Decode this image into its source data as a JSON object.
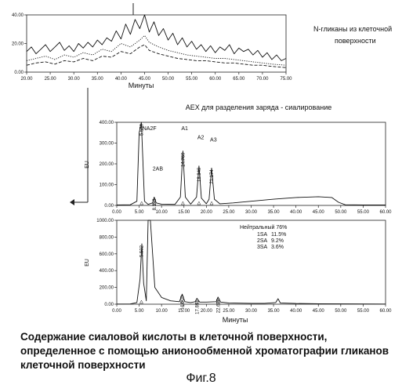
{
  "figure": {
    "caption_lines": [
      "Содержание сиаловой кислоты в клеточной поверхности,",
      "определенное с помощью анионообменной хроматографии гликанов",
      "клеточной поверхности"
    ],
    "label": "Фиг.8"
  },
  "chart_data": [
    {
      "id": "top",
      "type": "line",
      "title": "N-гликаны из клеточной поверхности",
      "xlabel": "Минуты",
      "ylabel": "",
      "xlim": [
        20,
        75
      ],
      "ylim": [
        0,
        50
      ],
      "x_ticks": [
        "20.00",
        "25.00",
        "30.00",
        "35.00",
        "40.00",
        "45.00",
        "50.00",
        "55.00",
        "60.00",
        "65.00",
        "70.00",
        "75.00"
      ],
      "y_ticks": [
        "0.00",
        "20.00",
        "40.00"
      ],
      "series": [
        {
          "style": "solid",
          "x": [
            20,
            21,
            22,
            23,
            24,
            25,
            26,
            27,
            28,
            29,
            30,
            31,
            32,
            33,
            34,
            35,
            36,
            37,
            38,
            39,
            40,
            41,
            42,
            43,
            44,
            45,
            46,
            47,
            48,
            49,
            50,
            51,
            52,
            53,
            54,
            55,
            56,
            57,
            58,
            59,
            60,
            61,
            62,
            63,
            64,
            65,
            66,
            67,
            68,
            69,
            70,
            71,
            72,
            73,
            74,
            75
          ],
          "y": [
            18,
            22,
            16,
            20,
            24,
            18,
            22,
            26,
            19,
            23,
            18,
            25,
            21,
            26,
            22,
            28,
            24,
            30,
            27,
            36,
            29,
            42,
            33,
            46,
            38,
            51,
            35,
            44,
            32,
            38,
            28,
            34,
            24,
            30,
            22,
            27,
            20,
            24,
            18,
            23,
            17,
            22,
            19,
            24,
            16,
            21,
            18,
            20,
            15,
            19,
            13,
            17,
            11,
            15,
            10,
            12
          ]
        },
        {
          "style": "dotted",
          "x": [
            20,
            22,
            24,
            26,
            28,
            30,
            32,
            34,
            36,
            38,
            40,
            42,
            44,
            45,
            46,
            48,
            50,
            52,
            54,
            56,
            58,
            60,
            62,
            64,
            66,
            68,
            70,
            72,
            75
          ],
          "y": [
            10,
            12,
            14,
            11,
            15,
            13,
            17,
            15,
            20,
            18,
            25,
            22,
            28,
            32,
            26,
            22,
            19,
            17,
            15,
            14,
            13,
            12,
            12,
            11,
            10,
            9,
            8,
            7,
            6
          ]
        },
        {
          "style": "dashed",
          "x": [
            20,
            22,
            24,
            26,
            28,
            30,
            32,
            34,
            36,
            38,
            40,
            42,
            44,
            45,
            46,
            48,
            50,
            52,
            54,
            56,
            58,
            60,
            62,
            64,
            66,
            68,
            70,
            72,
            75
          ],
          "y": [
            6,
            8,
            9,
            7,
            10,
            9,
            12,
            10,
            14,
            13,
            18,
            16,
            22,
            24,
            19,
            16,
            14,
            12,
            11,
            10,
            10,
            9,
            8,
            8,
            7,
            6,
            6,
            5,
            4
          ]
        }
      ]
    },
    {
      "id": "aex",
      "type": "line",
      "title": "AEX для разделения заряда - сиалирование",
      "xlabel": "",
      "ylabel": "EU",
      "xlim": [
        0,
        60
      ],
      "ylim": [
        0,
        400
      ],
      "x_ticks": [
        "0.00",
        "5.00",
        "10.00",
        "15.00",
        "20.00",
        "25.00",
        "30.00",
        "35.00",
        "40.00",
        "45.00",
        "50.00",
        "55.00",
        "60.00"
      ],
      "y_ticks": [
        "0.00",
        "100.00",
        "200.00",
        "300.00",
        "400.00"
      ],
      "series": [
        {
          "style": "solid",
          "x": [
            0,
            3,
            4.5,
            5.0,
            5.5,
            6.2,
            7,
            8.0,
            8.358,
            8.8,
            10,
            13,
            14.2,
            14.76,
            15.3,
            16.5,
            17.8,
            18.349,
            18.9,
            20,
            20.6,
            21.174,
            21.8,
            23,
            26,
            30,
            35,
            40,
            45,
            48,
            49.5,
            51,
            55,
            60
          ],
          "y": [
            2,
            3,
            20,
            350,
            410,
            20,
            5,
            12,
            40,
            12,
            6,
            5,
            40,
            262,
            40,
            6,
            40,
            190,
            35,
            8,
            30,
            180,
            30,
            8,
            12,
            20,
            30,
            38,
            42,
            38,
            15,
            3,
            2,
            2
          ]
        }
      ],
      "peak_labels": [
        {
          "name": "NA2F",
          "time": "5.550",
          "x": 5.55
        },
        {
          "name": "2AB",
          "time": "8.358",
          "x": 8.358
        },
        {
          "name": "A1",
          "time": "14.760",
          "x": 14.76
        },
        {
          "name": "A2",
          "time": "18.349",
          "x": 18.349
        },
        {
          "name": "A3",
          "time": "21.174",
          "x": 21.174
        }
      ]
    },
    {
      "id": "cells",
      "type": "line",
      "title": "",
      "xlabel": "Минуты",
      "ylabel": "EU",
      "xlim": [
        0,
        60
      ],
      "ylim": [
        0,
        1000
      ],
      "x_ticks": [
        "0.00",
        "5.00",
        "10.00",
        "15.00",
        "20.00",
        "25.00",
        "30.00",
        "35.00",
        "40.00",
        "45.00",
        "50.00",
        "55.00",
        "60.00"
      ],
      "y_ticks": [
        "0.00",
        "200.00",
        "400.00",
        "600.00",
        "800.00",
        "1000.00"
      ],
      "series": [
        {
          "style": "solid",
          "x": [
            0,
            3,
            4.5,
            5.2,
            5.6,
            6.0,
            6.6,
            7.0,
            7.5,
            8.5,
            10,
            12,
            14,
            14.6,
            15.2,
            16.5,
            17.5,
            17.9,
            18.5,
            20,
            22.2,
            22.6,
            23.2,
            25,
            30,
            33,
            35.5,
            36,
            36.5,
            40,
            45,
            50,
            55,
            60
          ],
          "y": [
            2,
            3,
            20,
            300,
            720,
            250,
            40,
            1000,
            1000,
            200,
            80,
            40,
            30,
            120,
            30,
            20,
            30,
            70,
            25,
            25,
            30,
            85,
            25,
            15,
            10,
            10,
            20,
            65,
            15,
            8,
            6,
            4,
            3,
            2
          ]
        }
      ],
      "peak_labels": [
        {
          "time": "5.502",
          "x": 5.502
        },
        {
          "time": "14.600",
          "x": 14.6
        },
        {
          "time": "17.891",
          "x": 17.891
        },
        {
          "time": "22.638",
          "x": 22.638
        }
      ],
      "annotation": {
        "title": "Нейтральный 76%",
        "rows": [
          {
            "name": "1SA",
            "value": "11.5%"
          },
          {
            "name": "2SA",
            "value": "9.2%"
          },
          {
            "name": "3SA",
            "value": "3.6%"
          }
        ]
      }
    }
  ]
}
